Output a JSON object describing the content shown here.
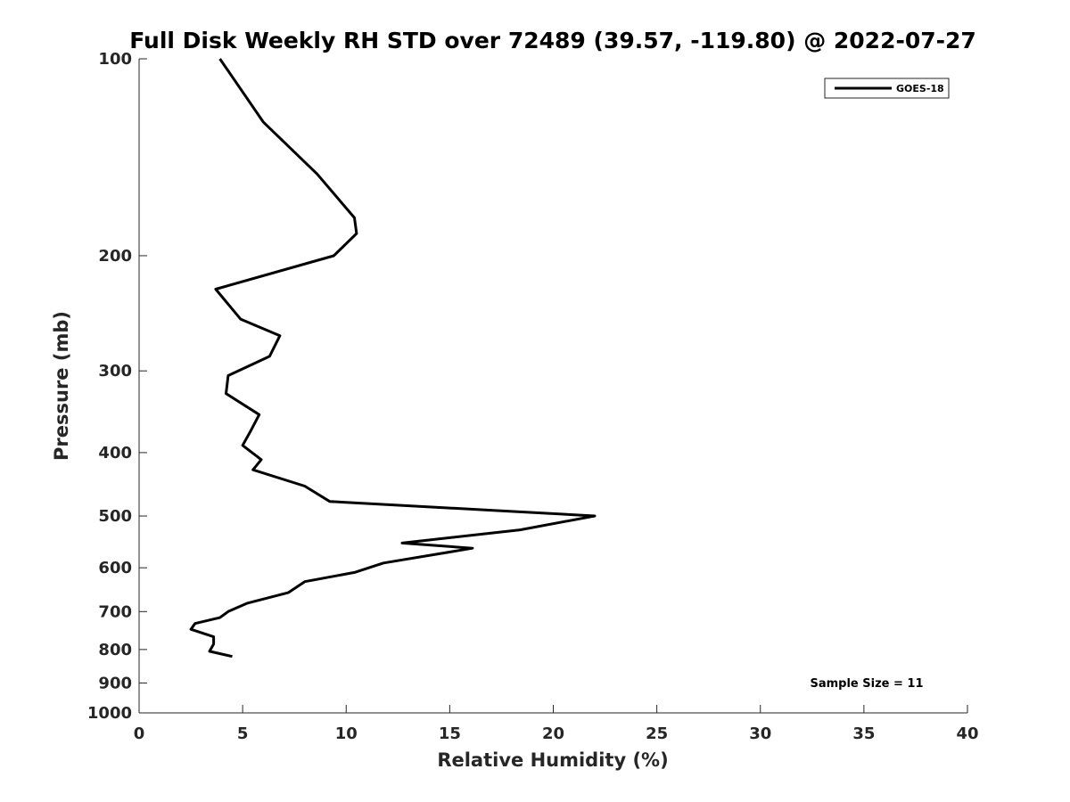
{
  "chart_data": {
    "type": "line",
    "title": "Full Disk Weekly RH STD over 72489 (39.57, -119.80) @ 2022-07-27",
    "xlabel": "Relative Humidity (%)",
    "ylabel": "Pressure (mb)",
    "xlim": [
      0,
      40
    ],
    "ylim": [
      100,
      1000
    ],
    "y_scale": "log",
    "y_inverted": true,
    "x_ticks": [
      0,
      5,
      10,
      15,
      20,
      25,
      30,
      35,
      40
    ],
    "y_ticks": [
      100,
      200,
      300,
      400,
      500,
      600,
      700,
      800,
      900,
      1000
    ],
    "grid": false,
    "legend": "top-right",
    "series": [
      {
        "name": "GOES-18",
        "color": "#000000",
        "x": [
          3.9,
          6.0,
          8.6,
          10.4,
          10.5,
          9.4,
          3.7,
          4.9,
          6.8,
          6.3,
          4.3,
          4.2,
          5.8,
          5.4,
          5.0,
          5.9,
          5.5,
          8.0,
          9.2,
          17.0,
          22.0,
          18.4,
          12.7,
          16.1,
          11.8,
          10.4,
          8.0,
          7.2,
          5.2,
          4.3,
          3.9,
          2.7,
          2.5,
          3.6,
          3.6,
          3.4,
          4.5
        ],
        "y": [
          100,
          125,
          150,
          175,
          185,
          200,
          225,
          250,
          265,
          285,
          305,
          325,
          350,
          370,
          390,
          410,
          425,
          450,
          475,
          490,
          500,
          525,
          550,
          560,
          590,
          610,
          630,
          655,
          680,
          700,
          715,
          730,
          745,
          765,
          785,
          805,
          820
        ]
      }
    ],
    "annotations": [
      "Sample Size = 11"
    ]
  }
}
